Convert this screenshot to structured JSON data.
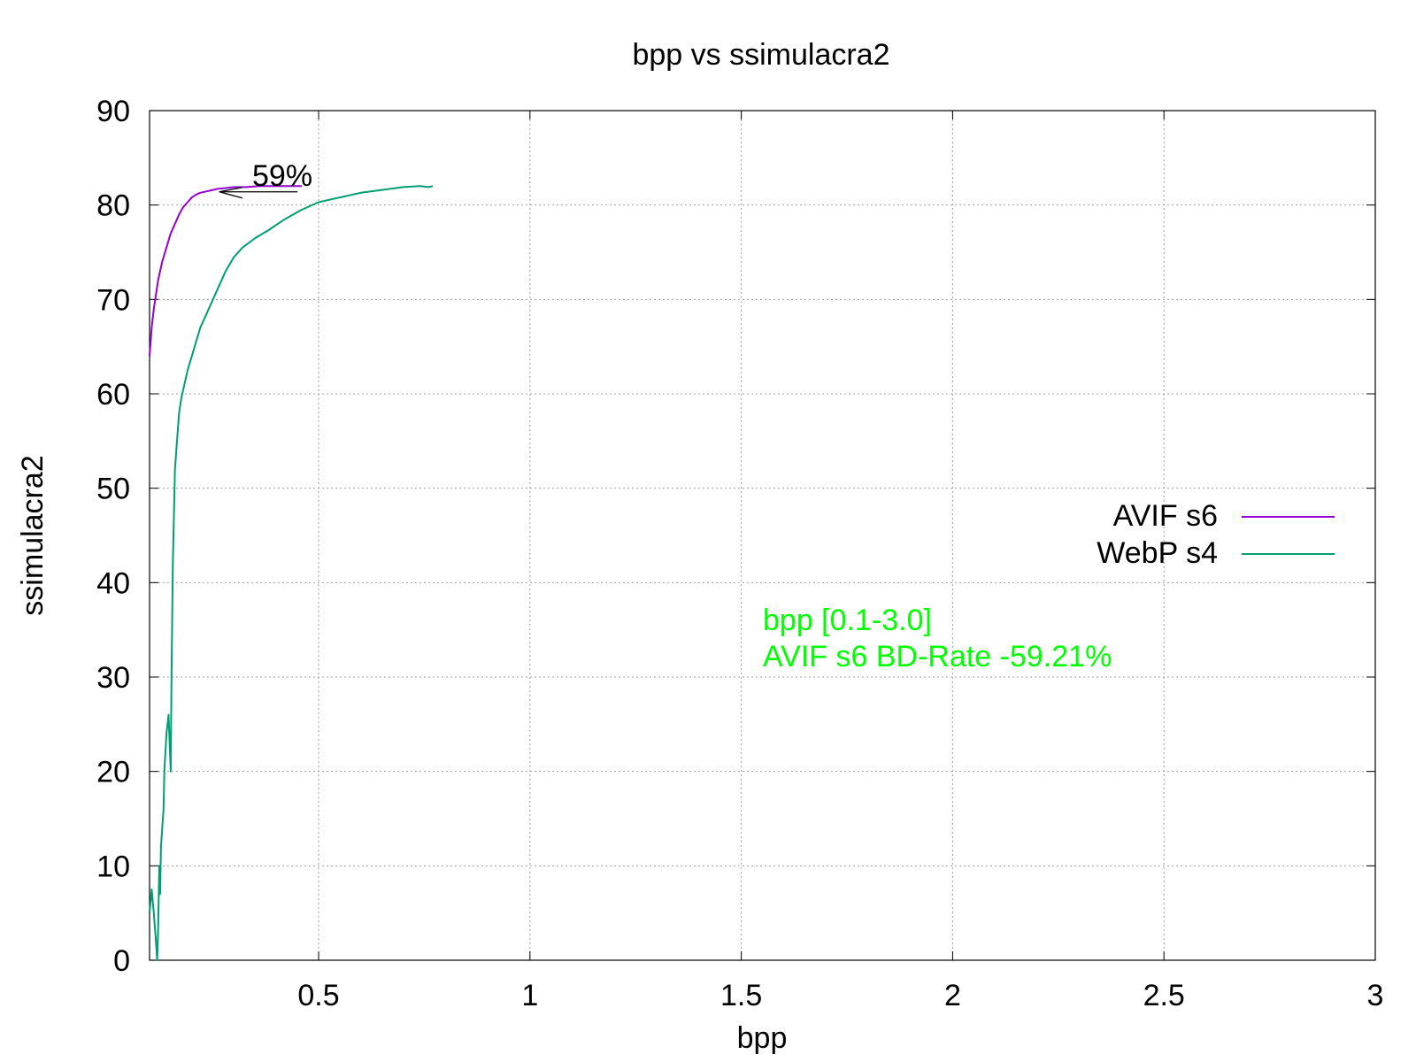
{
  "chart_data": {
    "type": "line",
    "title": "bpp vs ssimulacra2",
    "xlabel": "bpp",
    "ylabel": "ssimulacra2",
    "xlim": [
      0.1,
      3.0
    ],
    "ylim": [
      0,
      90
    ],
    "grid": true,
    "legend_position": "right",
    "x_ticks": [
      "0.5",
      "1",
      "1.5",
      "2",
      "2.5",
      "3"
    ],
    "y_ticks": [
      "0",
      "10",
      "20",
      "30",
      "40",
      "50",
      "60",
      "70",
      "80",
      "90"
    ],
    "series": [
      {
        "name": "AVIF s6",
        "color": "#9400d3",
        "x": [
          0.1,
          0.105,
          0.11,
          0.115,
          0.12,
          0.13,
          0.14,
          0.15,
          0.16,
          0.17,
          0.18,
          0.19,
          0.2,
          0.21,
          0.22,
          0.24,
          0.26,
          0.28,
          0.3,
          0.33,
          0.36,
          0.39,
          0.42,
          0.44,
          0.46
        ],
        "y": [
          64,
          67,
          69,
          70.5,
          72,
          74,
          75.5,
          77,
          78,
          79,
          79.8,
          80.3,
          80.8,
          81.1,
          81.3,
          81.5,
          81.7,
          81.8,
          81.9,
          81.9,
          82.0,
          82.0,
          82.0,
          82.0,
          82.0
        ]
      },
      {
        "name": "WebP s4",
        "color": "#009e73",
        "x": [
          0.1,
          0.105,
          0.11,
          0.115,
          0.118,
          0.12,
          0.123,
          0.125,
          0.127,
          0.13,
          0.133,
          0.135,
          0.14,
          0.145,
          0.15,
          0.152,
          0.155,
          0.16,
          0.165,
          0.17,
          0.175,
          0.18,
          0.19,
          0.2,
          0.21,
          0.22,
          0.24,
          0.26,
          0.28,
          0.3,
          0.32,
          0.35,
          0.38,
          0.42,
          0.46,
          0.5,
          0.55,
          0.6,
          0.65,
          0.7,
          0.74,
          0.76,
          0.77
        ],
        "y": [
          5,
          7.5,
          5,
          2,
          0,
          3,
          10,
          7,
          12,
          14,
          16,
          20,
          24,
          26,
          20,
          30,
          42,
          52,
          55,
          58,
          59.5,
          60.5,
          62.5,
          64,
          65.5,
          67,
          69,
          71,
          73,
          74.5,
          75.5,
          76.5,
          77.3,
          78.5,
          79.5,
          80.3,
          80.8,
          81.3,
          81.6,
          81.9,
          82.0,
          81.9,
          82.0
        ]
      }
    ],
    "annotations": [
      {
        "text": "59%",
        "color": "#000000"
      },
      {
        "text": "bpp [0.1-3.0]",
        "color": "#00ff00"
      },
      {
        "text": "AVIF s6 BD-Rate -59.21%",
        "color": "#00ff00"
      }
    ],
    "arrow": {
      "from": [
        0.45,
        81.4
      ],
      "to": [
        0.265,
        81.4
      ],
      "color": "#000000"
    }
  }
}
